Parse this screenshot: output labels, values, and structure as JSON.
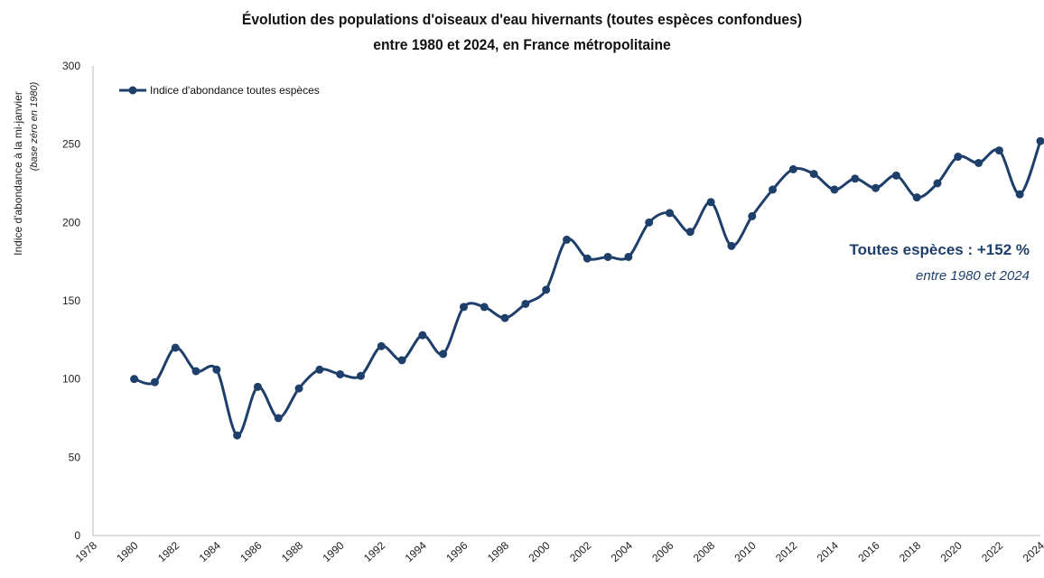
{
  "chart_data": {
    "type": "line",
    "title": "Évolution des populations d'oiseaux d'eau hivernants (toutes espèces confondues)",
    "subtitle": "entre 1980 et 2024, en France métropolitaine",
    "ylabel": "Indice d'abondance à la mi-janvier",
    "ylabel_note": "(base zéro en 1980)",
    "xlabel": "",
    "ylim": [
      0,
      300
    ],
    "xlim": [
      1978,
      2024
    ],
    "y_ticks": [
      "0",
      "50",
      "100",
      "150",
      "200",
      "250",
      "300"
    ],
    "x_ticks": [
      "1978",
      "1980",
      "1982",
      "1984",
      "1986",
      "1988",
      "1990",
      "1992",
      "1994",
      "1996",
      "1998",
      "2000",
      "2002",
      "2004",
      "2006",
      "2008",
      "2010",
      "2012",
      "2014",
      "2016",
      "2018",
      "2020",
      "2022",
      "2024"
    ],
    "grid": false,
    "legend_position": "top-left",
    "series": [
      {
        "name": "Indice d'abondance toutes espèces",
        "color": "#1f3f6b",
        "x": [
          1980,
          1981,
          1982,
          1983,
          1984,
          1985,
          1986,
          1987,
          1988,
          1989,
          1990,
          1991,
          1992,
          1993,
          1994,
          1995,
          1996,
          1997,
          1998,
          1999,
          2000,
          2001,
          2002,
          2003,
          2004,
          2005,
          2006,
          2007,
          2008,
          2009,
          2010,
          2011,
          2012,
          2013,
          2014,
          2015,
          2016,
          2017,
          2018,
          2019,
          2020,
          2021,
          2022,
          2023,
          2024
        ],
        "values": [
          100,
          98,
          120,
          105,
          106,
          64,
          95,
          75,
          94,
          106,
          103,
          102,
          121,
          112,
          128,
          116,
          146,
          146,
          139,
          148,
          157,
          189,
          177,
          178,
          178,
          200,
          206,
          194,
          213,
          185,
          204,
          221,
          234,
          231,
          221,
          228,
          222,
          230,
          216,
          225,
          242,
          238,
          246,
          218,
          252
        ]
      }
    ],
    "annotations": [
      {
        "text": "Toutes espèces : +152 %"
      },
      {
        "text": "entre 1980 et 2024"
      }
    ]
  }
}
